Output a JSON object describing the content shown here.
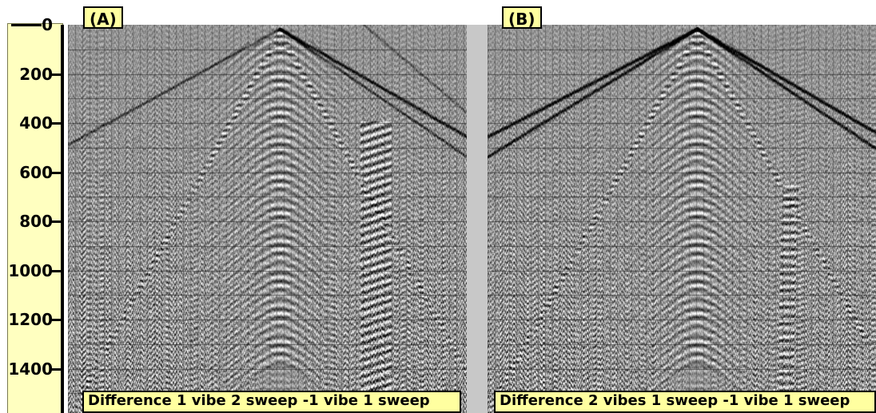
{
  "axis": {
    "ticks": [
      "0",
      "200",
      "400",
      "600",
      "800",
      "1000",
      "1200",
      "1400"
    ],
    "range": [
      0,
      1580
    ]
  },
  "panels": [
    {
      "tag": "(A)",
      "caption": "Difference 1 vibe 2 sweep -1 vibe 1 sweep"
    },
    {
      "tag": "(B)",
      "caption": "Difference 2 vibes 1 sweep -1 vibe 1 sweep"
    }
  ],
  "colors": {
    "label_bg": "#ffffa0",
    "axis_bg": "#ffffc0",
    "gap": "#c8c8c8"
  }
}
